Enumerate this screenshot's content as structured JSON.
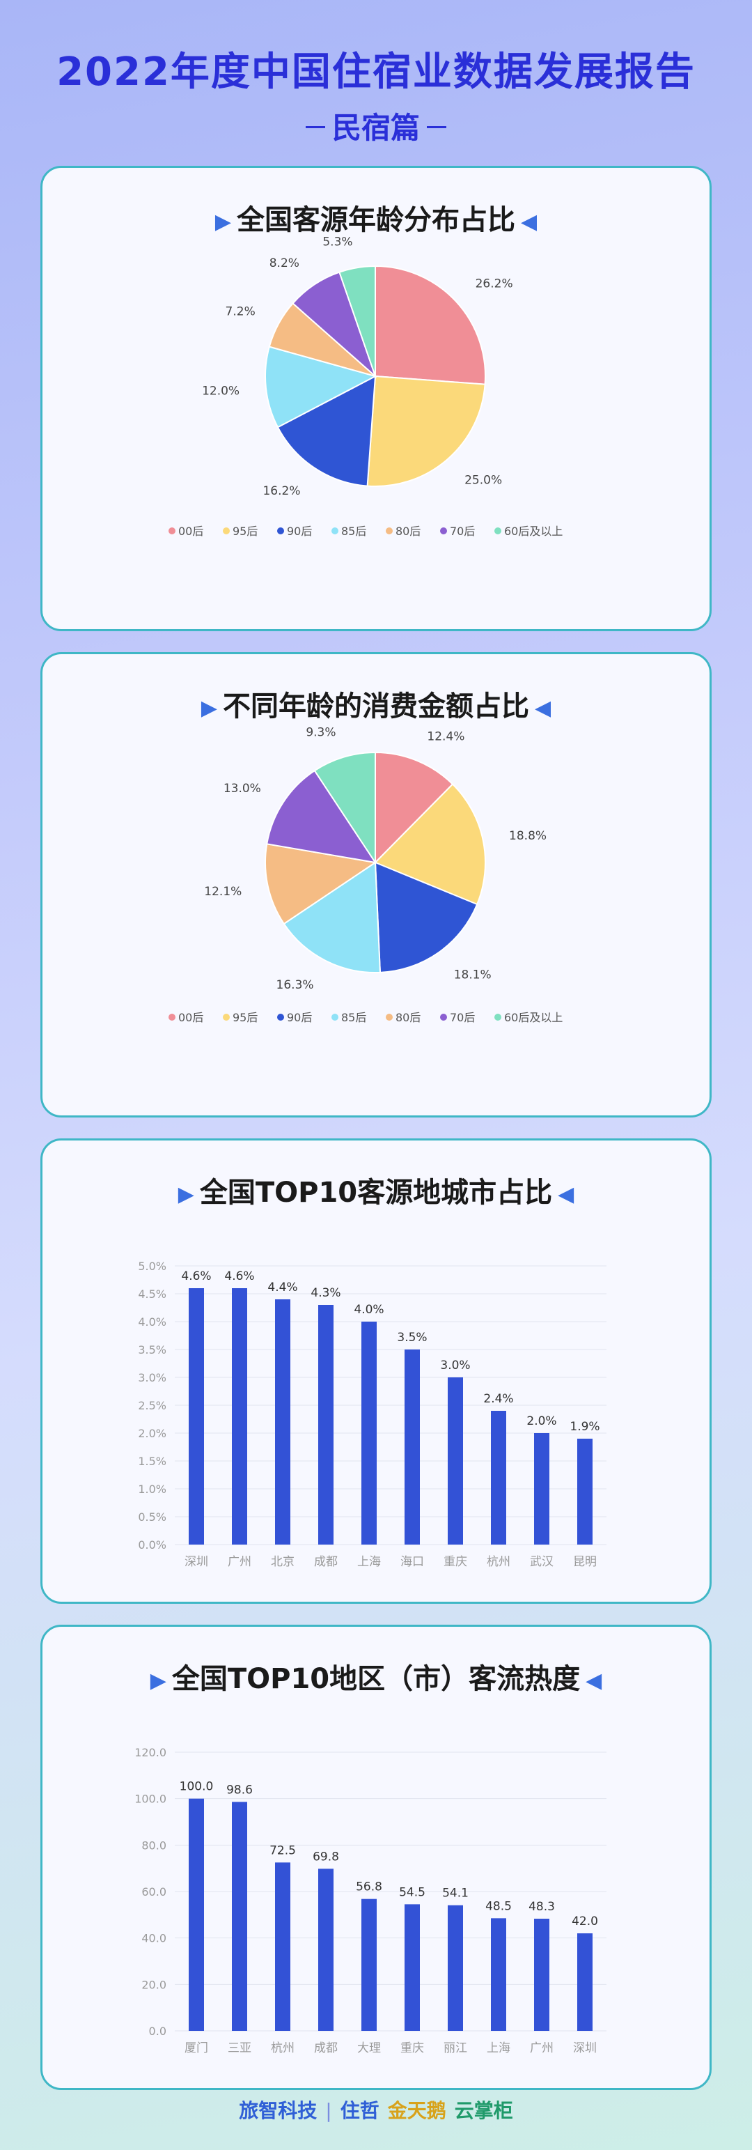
{
  "header": {
    "title": "2022年度中国住宿业数据发展报告",
    "subtitle": "民宿篇"
  },
  "footer": {
    "brand1": "旅智科技",
    "brand2": "住哲",
    "brand3": "金天鹅",
    "brand4": "云掌柜"
  },
  "colors": {
    "pie": [
      "#f08e96",
      "#fbd97a",
      "#2f55d4",
      "#8fe2f7",
      "#f5bc84",
      "#8b5fd1",
      "#7fe0c0"
    ],
    "bar": "#3352d6",
    "card_border": "#3fb7c6",
    "title": "#2a2fd8"
  },
  "chart_data": [
    {
      "type": "pie",
      "title": "全国客源年龄分布占比",
      "categories": [
        "00后",
        "95后",
        "90后",
        "85后",
        "80后",
        "70后",
        "60后及以上"
      ],
      "values": [
        26.2,
        25.0,
        16.2,
        12.0,
        7.2,
        8.2,
        5.3
      ],
      "labels": [
        "26.2%",
        "25.0%",
        "16.2%",
        "12.0%",
        "7.2%",
        "8.2%",
        "5.3%"
      ],
      "legend": "bottom"
    },
    {
      "type": "pie",
      "title": "不同年龄的消费金额占比",
      "categories": [
        "00后",
        "95后",
        "90后",
        "85后",
        "80后",
        "70后",
        "60后及以上"
      ],
      "values": [
        12.4,
        18.8,
        18.1,
        16.3,
        12.1,
        13.0,
        9.3
      ],
      "labels": [
        "12.4%",
        "18.8%",
        "18.1%",
        "16.3%",
        "12.1%",
        "13.0%",
        "9.3%"
      ],
      "legend": "bottom"
    },
    {
      "type": "bar",
      "title": "全国TOP10客源地城市占比",
      "categories": [
        "深圳",
        "广州",
        "北京",
        "成都",
        "上海",
        "海口",
        "重庆",
        "杭州",
        "武汉",
        "昆明"
      ],
      "values": [
        4.6,
        4.6,
        4.4,
        4.3,
        4.0,
        3.5,
        3.0,
        2.4,
        2.0,
        1.9
      ],
      "labels": [
        "4.6%",
        "4.6%",
        "4.4%",
        "4.3%",
        "4.0%",
        "3.5%",
        "3.0%",
        "2.4%",
        "2.0%",
        "1.9%"
      ],
      "ylim": [
        0,
        5.0
      ],
      "yticks": [
        "0.0%",
        "0.5%",
        "1.0%",
        "1.5%",
        "2.0%",
        "2.5%",
        "3.0%",
        "3.5%",
        "4.0%",
        "4.5%",
        "5.0%"
      ],
      "grid": true
    },
    {
      "type": "bar",
      "title": "全国TOP10地区（市）客流热度",
      "categories": [
        "厦门",
        "三亚",
        "杭州",
        "成都",
        "大理",
        "重庆",
        "丽江",
        "上海",
        "广州",
        "深圳"
      ],
      "values": [
        100.0,
        98.6,
        72.5,
        69.8,
        56.8,
        54.5,
        54.1,
        48.5,
        48.3,
        42.0
      ],
      "labels": [
        "100.0",
        "98.6",
        "72.5",
        "69.8",
        "56.8",
        "54.5",
        "54.1",
        "48.5",
        "48.3",
        "42.0"
      ],
      "ylim": [
        0,
        120
      ],
      "yticks": [
        "0.0",
        "20.0",
        "40.0",
        "60.0",
        "80.0",
        "100.0",
        "120.0"
      ],
      "grid": true
    }
  ]
}
